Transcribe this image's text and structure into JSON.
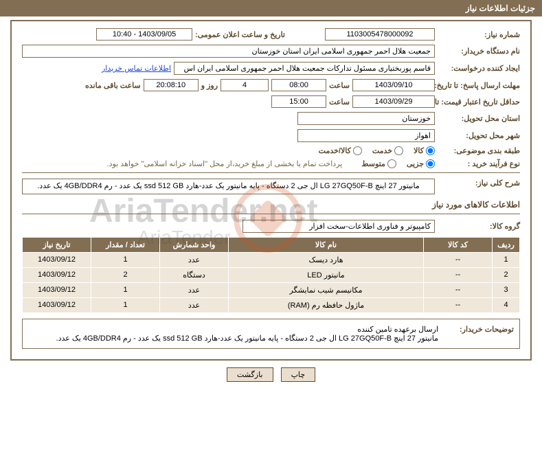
{
  "header": {
    "title": "جزئیات اطلاعات نیاز"
  },
  "fields": {
    "need_no_label": "شماره نیاز:",
    "need_no": "1103005478000092",
    "announce_label": "تاریخ و ساعت اعلان عمومی:",
    "announce": "1403/09/05 - 10:40",
    "buyer_label": "نام دستگاه خریدار:",
    "buyer": "جمعیت هلال احمر جمهوری اسلامی ایران استان خوزستان",
    "requester_label": "ایجاد کننده درخواست:",
    "requester": "قاسم پوربختیاری مسئول تدارکات جمعیت هلال احمر جمهوری اسلامی ایران اس",
    "contact_link": "اطلاعات تماس خریدار",
    "deadline_resp_label": "مهلت ارسال پاسخ: تا تاریخ:",
    "deadline_resp_date": "1403/09/10",
    "time_label": "ساعت",
    "deadline_resp_time": "08:00",
    "days_count": "4",
    "days_and": "روز و",
    "countdown": "20:08:10",
    "remaining": "ساعت باقی مانده",
    "validity_label": "حداقل تاریخ اعتبار قیمت: تا تاریخ:",
    "validity_date": "1403/09/29",
    "validity_time": "15:00",
    "province_label": "استان محل تحویل:",
    "province": "خوزستان",
    "city_label": "شهر محل تحویل:",
    "city": "اهواز",
    "category_label": "طبقه بندی موضوعی:",
    "cat_goods": "کالا",
    "cat_service": "خدمت",
    "cat_both": "کالا/خدمت",
    "process_label": "نوع فرآیند خرید :",
    "proc_minor": "جزیی",
    "proc_medium": "متوسط",
    "payment_note": "پرداخت تمام یا بخشی از مبلغ خرید،از محل \"اسناد خزانه اسلامی\" خواهد بود.",
    "summary_label": "شرح کلی نیاز:",
    "summary": "مانیتور 27 اینچ LG 27GQ50F-B ال جی 2 دستگاه - پایه مانیتور یک عدد-هارد ssd 512 GB یک عدد - رم 4GB/DDR4 یک عدد.",
    "items_title": "اطلاعات کالاهای مورد نیاز",
    "group_label": "گروه کالا:",
    "group": "کامپیوتر و فناوری اطلاعات-سخت افزار",
    "desc_label": "توضیحات خریدار:",
    "desc_line1": "ارسال برعهده تامین کننده",
    "desc_line2": "مانیتور 27 اینچ LG 27GQ50F-B ال جی 2 دستگاه - پایه مانیتور یک عدد-هارد ssd 512 GB یک عدد - رم 4GB/DDR4 یک عدد."
  },
  "table": {
    "headers": {
      "row": "ردیف",
      "code": "کد کالا",
      "name": "نام کالا",
      "unit": "واحد شمارش",
      "qty": "تعداد / مقدار",
      "date": "تاریخ نیاز"
    },
    "rows": [
      {
        "row": "1",
        "code": "--",
        "name": "هارد دیسک",
        "unit": "عدد",
        "qty": "1",
        "date": "1403/09/12"
      },
      {
        "row": "2",
        "code": "--",
        "name": "مانیتور LED",
        "unit": "دستگاه",
        "qty": "2",
        "date": "1403/09/12"
      },
      {
        "row": "3",
        "code": "--",
        "name": "مکانیسم شیب نمایشگر",
        "unit": "عدد",
        "qty": "1",
        "date": "1403/09/12"
      },
      {
        "row": "4",
        "code": "--",
        "name": "ماژول حافظه رم (RAM)",
        "unit": "عدد",
        "qty": "1",
        "date": "1403/09/12"
      }
    ]
  },
  "buttons": {
    "print": "چاپ",
    "back": "بازگشت"
  },
  "watermark": {
    "main": "AriaTender.net",
    "minor": "AriaTender"
  }
}
